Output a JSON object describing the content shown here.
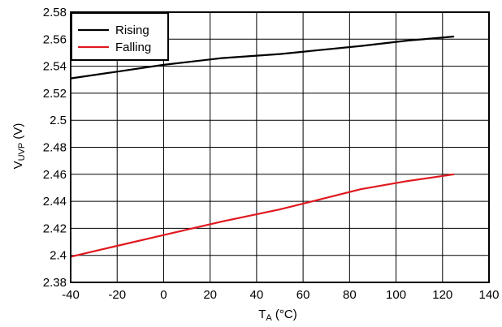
{
  "chart_data": {
    "type": "line",
    "title": "",
    "xlabel": {
      "main": "T",
      "sub": "A",
      "unit": " (°C)"
    },
    "ylabel": {
      "main": "V",
      "sub": "UVP",
      "unit": " (V)"
    },
    "xlim": [
      -40,
      140
    ],
    "ylim": [
      2.38,
      2.58
    ],
    "xticks": [
      -40,
      -20,
      0,
      20,
      40,
      60,
      80,
      100,
      120,
      140
    ],
    "xtick_labels": [
      "-40",
      "-20",
      "0",
      "20",
      "40",
      "60",
      "80",
      "100",
      "120",
      "140"
    ],
    "yticks": [
      2.38,
      2.4,
      2.42,
      2.44,
      2.46,
      2.48,
      2.5,
      2.52,
      2.54,
      2.56,
      2.58
    ],
    "ytick_labels": [
      "2.38",
      "2.4",
      "2.42",
      "2.44",
      "2.46",
      "2.48",
      "2.5",
      "2.52",
      "2.54",
      "2.56",
      "2.58"
    ],
    "grid": true,
    "legend_position": "top-left",
    "series": [
      {
        "name": "Rising",
        "color": "#000000",
        "x": [
          -40,
          -20,
          0,
          25,
          50,
          85,
          105,
          125
        ],
        "y": [
          2.531,
          2.536,
          2.541,
          2.546,
          2.549,
          2.555,
          2.559,
          2.562
        ]
      },
      {
        "name": "Falling",
        "color": "#e0191f",
        "x": [
          -40,
          -20,
          0,
          25,
          50,
          85,
          105,
          125
        ],
        "y": [
          2.399,
          2.407,
          2.415,
          2.425,
          2.434,
          2.449,
          2.455,
          2.46
        ]
      }
    ]
  }
}
